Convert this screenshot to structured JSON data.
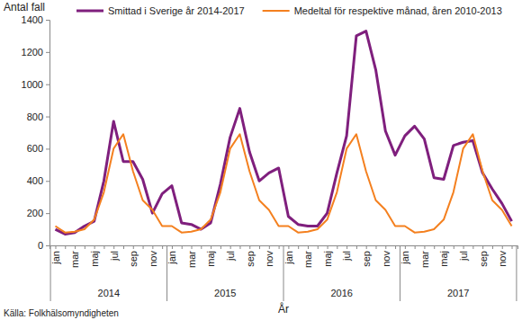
{
  "chart_data": {
    "type": "line",
    "y_label": "Antal fall",
    "x_label": "År",
    "source": "Källa: Folkhälsomyndigheten",
    "categories": [
      "jan",
      null,
      "mar",
      null,
      "maj",
      null,
      "jul",
      null,
      "sep",
      null,
      "nov",
      null,
      "jan",
      null,
      "mar",
      null,
      "maj",
      null,
      "jul",
      null,
      "sep",
      null,
      "nov",
      null,
      "jan",
      null,
      "mar",
      null,
      "maj",
      null,
      "jul",
      null,
      "sep",
      null,
      "nov",
      null,
      "jan",
      null,
      "mar",
      null,
      "maj",
      null,
      "jul",
      null,
      "sep",
      null,
      "nov",
      null
    ],
    "x_groups": [
      "2014",
      "2015",
      "2016",
      "2017"
    ],
    "series": [
      {
        "name": "Smittad i Sverige år 2014-2017",
        "color": "#7f1f7d",
        "values": [
          100,
          70,
          80,
          120,
          150,
          400,
          770,
          520,
          520,
          410,
          200,
          320,
          370,
          140,
          130,
          100,
          140,
          380,
          670,
          850,
          580,
          400,
          450,
          480,
          180,
          130,
          120,
          120,
          200,
          450,
          680,
          1300,
          1330,
          1090,
          710,
          560,
          680,
          740,
          660,
          420,
          410,
          620,
          640,
          650,
          450,
          350,
          260,
          150
        ]
      },
      {
        "name": "Medeltal för respektive månad, åren 2010-2013",
        "color": "#f4801f",
        "values": [
          120,
          80,
          85,
          100,
          160,
          330,
          600,
          690,
          460,
          280,
          220,
          120,
          120,
          80,
          85,
          100,
          160,
          330,
          600,
          690,
          460,
          280,
          220,
          120,
          120,
          80,
          85,
          100,
          160,
          330,
          600,
          690,
          460,
          280,
          220,
          120,
          120,
          80,
          85,
          100,
          160,
          330,
          600,
          690,
          460,
          280,
          220,
          120
        ]
      }
    ],
    "ylim": [
      0,
      1400
    ],
    "yticks": [
      0,
      200,
      400,
      600,
      800,
      1000,
      1200,
      1400
    ],
    "grid": false,
    "legend": "top"
  }
}
